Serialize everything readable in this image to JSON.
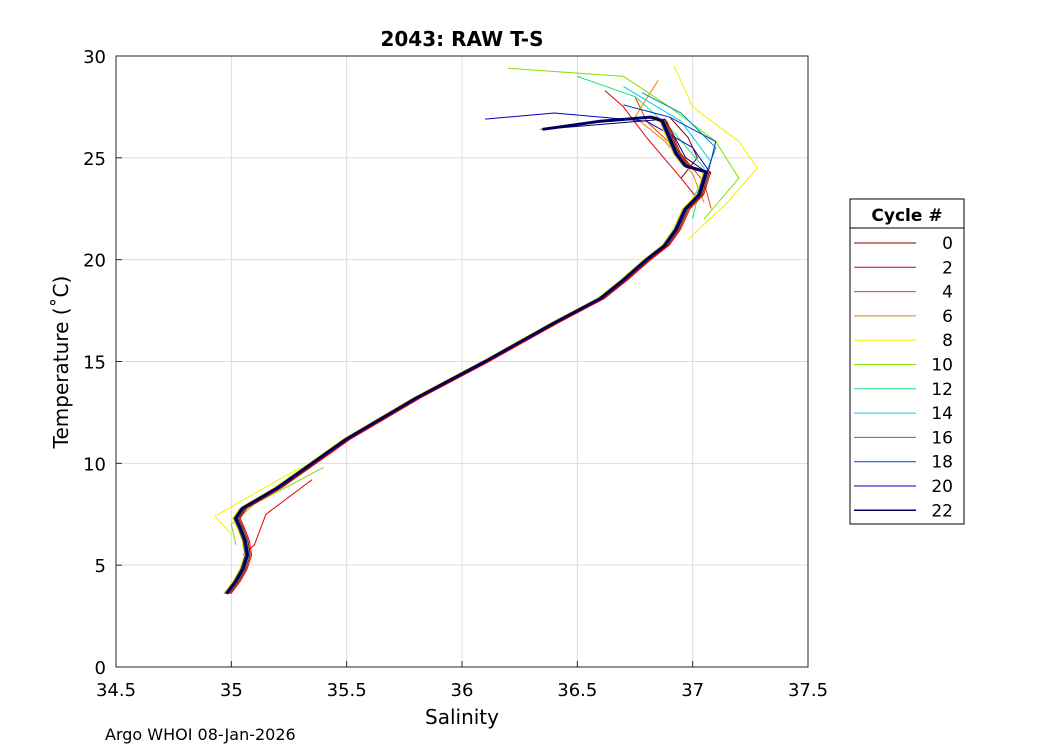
{
  "chart_data": {
    "type": "line",
    "title": "2043: RAW T-S",
    "xlabel": "Salinity",
    "ylabel": "Temperature (˚C)",
    "xlim": [
      34.5,
      37.5
    ],
    "ylim": [
      0,
      30
    ],
    "xticks": [
      "34.5",
      "35",
      "35.5",
      "36",
      "36.5",
      "37",
      "37.5"
    ],
    "yticks": [
      "0",
      "5",
      "10",
      "15",
      "20",
      "25",
      "30"
    ],
    "grid": true,
    "legend": {
      "title": "Cycle #",
      "placement": "right-outside",
      "entries": [
        {
          "label": "0",
          "color": "#800000"
        },
        {
          "label": "2",
          "color": "#e60000"
        },
        {
          "label": "4",
          "color": "#e64000"
        },
        {
          "label": "6",
          "color": "#f08000"
        },
        {
          "label": "8",
          "color": "#f0f000"
        },
        {
          "label": "10",
          "color": "#80e000"
        },
        {
          "label": "12",
          "color": "#20e080"
        },
        {
          "label": "14",
          "color": "#00d0f0"
        },
        {
          "label": "16",
          "color": "#0090c0"
        },
        {
          "label": "18",
          "color": "#0040c0"
        },
        {
          "label": "20",
          "color": "#0000c0"
        },
        {
          "label": "22",
          "color": "#000060"
        }
      ]
    },
    "profile": {
      "salinity": [
        34.98,
        35.02,
        35.05,
        35.07,
        35.06,
        35.04,
        35.02,
        35.05,
        35.2,
        35.5,
        35.8,
        36.1,
        36.4,
        36.6,
        36.7,
        36.8,
        36.88,
        36.93,
        36.97,
        37.03,
        37.06,
        36.97,
        36.93,
        36.9,
        36.87,
        36.82,
        36.6,
        36.35
      ],
      "temperature": [
        3.6,
        4.2,
        4.8,
        5.5,
        6.2,
        6.8,
        7.3,
        7.8,
        8.8,
        11.2,
        13.2,
        15.0,
        16.9,
        18.1,
        19.0,
        20.0,
        20.7,
        21.5,
        22.5,
        23.2,
        24.3,
        24.6,
        25.2,
        26.0,
        26.8,
        27.0,
        26.8,
        26.4
      ]
    },
    "surface_spread": [
      {
        "cycle": "0",
        "salinity": [
          36.95,
          37.02,
          36.98,
          36.9
        ],
        "temperature": [
          24.0,
          25.0,
          26.0,
          27.0
        ]
      },
      {
        "cycle": "2",
        "salinity": [
          37.02,
          36.95,
          36.8,
          36.7,
          36.62
        ],
        "temperature": [
          23.0,
          24.0,
          26.0,
          27.5,
          28.3
        ]
      },
      {
        "cycle": "4",
        "salinity": [
          37.08,
          37.05,
          36.95,
          36.8,
          36.75
        ],
        "temperature": [
          22.5,
          23.8,
          25.2,
          26.8,
          28.0
        ]
      },
      {
        "cycle": "6",
        "salinity": [
          37.05,
          37.0,
          36.88,
          36.75,
          36.85
        ],
        "temperature": [
          22.8,
          24.2,
          25.8,
          27.0,
          28.8
        ]
      },
      {
        "cycle": "8",
        "salinity": [
          36.98,
          37.15,
          37.28,
          37.2,
          37.0,
          36.92
        ],
        "temperature": [
          21.0,
          22.8,
          24.5,
          25.8,
          27.5,
          29.5
        ]
      },
      {
        "cycle": "10",
        "salinity": [
          37.05,
          37.2,
          37.1,
          36.9,
          36.7,
          36.2
        ],
        "temperature": [
          22.0,
          24.0,
          25.8,
          27.5,
          29.0,
          29.4
        ]
      },
      {
        "cycle": "12",
        "salinity": [
          37.0,
          37.05,
          36.9,
          36.75,
          36.5
        ],
        "temperature": [
          22.0,
          24.5,
          26.5,
          28.0,
          29.0
        ]
      },
      {
        "cycle": "14",
        "salinity": [
          36.98,
          37.08,
          36.95,
          36.7
        ],
        "temperature": [
          22.5,
          24.8,
          26.8,
          28.5
        ]
      },
      {
        "cycle": "16",
        "salinity": [
          37.02,
          37.1,
          36.95,
          36.78
        ],
        "temperature": [
          23.0,
          25.5,
          27.2,
          28.2
        ]
      },
      {
        "cycle": "18",
        "salinity": [
          37.05,
          37.1,
          36.9,
          36.7
        ],
        "temperature": [
          23.5,
          25.8,
          27.0,
          27.6
        ]
      },
      {
        "cycle": "20",
        "salinity": [
          37.08,
          37.0,
          36.8,
          36.4,
          36.1
        ],
        "temperature": [
          24.2,
          25.5,
          26.8,
          27.2,
          26.9
        ]
      },
      {
        "cycle": "22",
        "salinity": [
          37.06,
          36.97,
          36.88,
          36.35
        ],
        "temperature": [
          24.3,
          25.0,
          26.9,
          26.4
        ]
      }
    ],
    "deep_spread": [
      {
        "cycle": "8",
        "salinity": [
          35.0,
          34.93,
          35.05,
          35.3
        ],
        "temperature": [
          6.5,
          7.4,
          8.2,
          9.8
        ]
      },
      {
        "cycle": "2",
        "salinity": [
          35.05,
          35.1,
          35.15,
          35.35
        ],
        "temperature": [
          5.5,
          6.0,
          7.5,
          9.2
        ]
      },
      {
        "cycle": "10",
        "salinity": [
          35.02,
          35.0,
          35.1,
          35.4
        ],
        "temperature": [
          6.0,
          7.0,
          8.0,
          9.8
        ]
      }
    ]
  },
  "footer": "Argo WHOI 08-Jan-2026"
}
